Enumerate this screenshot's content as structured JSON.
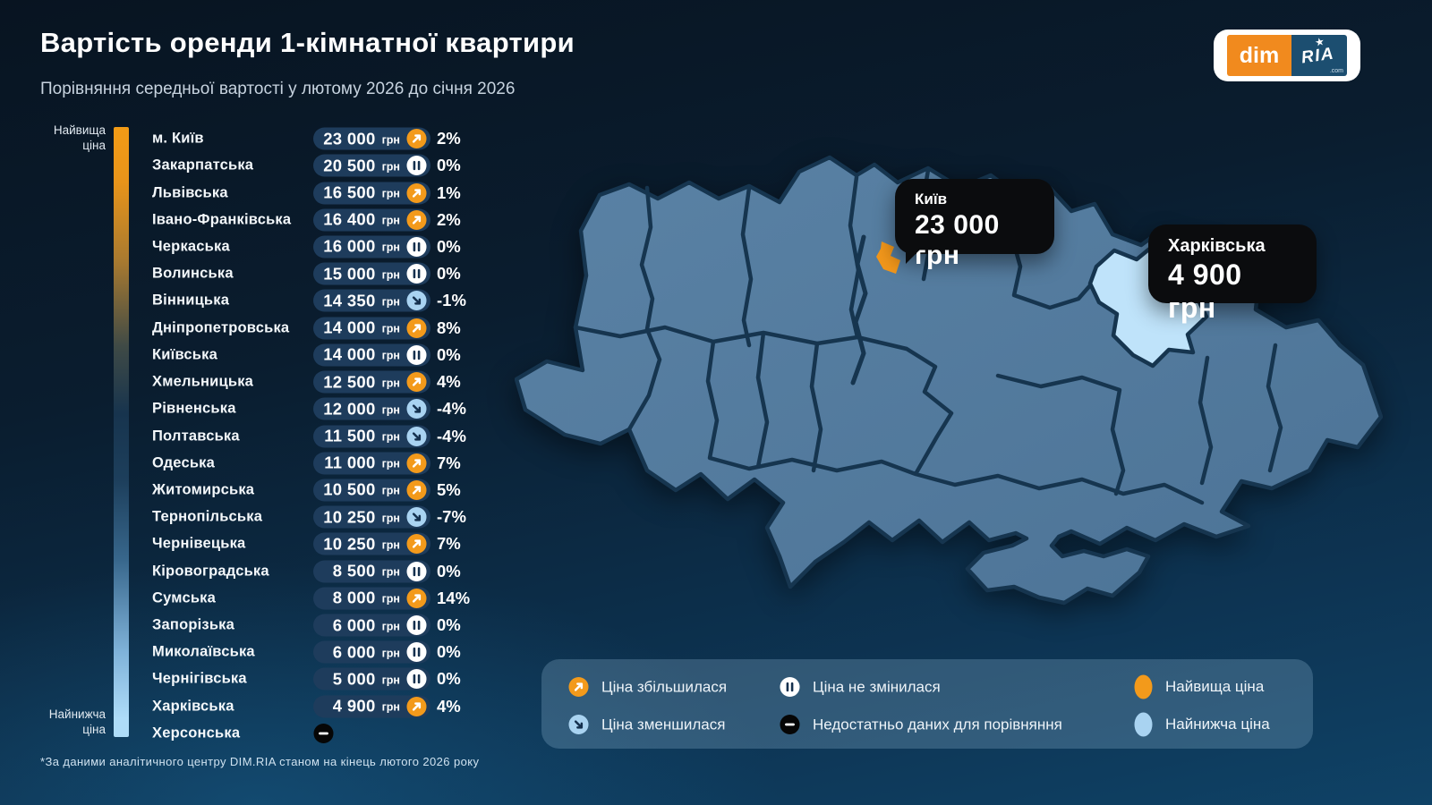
{
  "title": "Вартість оренди 1-кімнатної квартири",
  "subtitle": "Порівняння середньої вартості у лютому 2026 до січня 2026",
  "logo": {
    "dim": "dim",
    "ria": "RIA",
    "com": ".com",
    "star": "★"
  },
  "scale": {
    "top_label": "Найвища ціна",
    "bottom_label": "Найнижча ціна"
  },
  "units_label": "грн",
  "regions": [
    {
      "name": "м. Київ",
      "price": "23 000",
      "trend": "up",
      "change": "2%"
    },
    {
      "name": "Закарпатська",
      "price": "20 500",
      "trend": "same",
      "change": "0%"
    },
    {
      "name": "Львівська",
      "price": "16 500",
      "trend": "up",
      "change": "1%"
    },
    {
      "name": "Івано-Франківська",
      "price": "16 400",
      "trend": "up",
      "change": "2%"
    },
    {
      "name": "Черкаська",
      "price": "16 000",
      "trend": "same",
      "change": "0%"
    },
    {
      "name": "Волинська",
      "price": "15 000",
      "trend": "same",
      "change": "0%"
    },
    {
      "name": "Вінницька",
      "price": "14 350",
      "trend": "down",
      "change": "-1%"
    },
    {
      "name": "Дніпропетровська",
      "price": "14 000",
      "trend": "up",
      "change": "8%"
    },
    {
      "name": "Київська",
      "price": "14 000",
      "trend": "same",
      "change": "0%"
    },
    {
      "name": "Хмельницька",
      "price": "12 500",
      "trend": "up",
      "change": "4%"
    },
    {
      "name": "Рівненська",
      "price": "12 000",
      "trend": "down",
      "change": "-4%"
    },
    {
      "name": "Полтавська",
      "price": "11 500",
      "trend": "down",
      "change": "-4%"
    },
    {
      "name": "Одеська",
      "price": "11 000",
      "trend": "up",
      "change": "7%"
    },
    {
      "name": "Житомирська",
      "price": "10 500",
      "trend": "up",
      "change": "5%"
    },
    {
      "name": "Тернопільська",
      "price": "10 250",
      "trend": "down",
      "change": "-7%"
    },
    {
      "name": "Чернівецька",
      "price": "10 250",
      "trend": "up",
      "change": "7%"
    },
    {
      "name": "Кіровоградська",
      "price": "8 500",
      "trend": "same",
      "change": "0%"
    },
    {
      "name": "Сумська",
      "price": "8 000",
      "trend": "up",
      "change": "14%"
    },
    {
      "name": "Запорізька",
      "price": "6 000",
      "trend": "same",
      "change": "0%"
    },
    {
      "name": "Миколаївська",
      "price": "6 000",
      "trend": "same",
      "change": "0%"
    },
    {
      "name": "Чернігівська",
      "price": "5 000",
      "trend": "same",
      "change": "0%"
    },
    {
      "name": "Харківська",
      "price": "4 900",
      "trend": "up",
      "change": "4%"
    },
    {
      "name": "Херсонська",
      "price": "",
      "trend": "nodata",
      "change": ""
    }
  ],
  "map": {
    "callouts": [
      {
        "region": "Київ",
        "price": "23 000 грн"
      },
      {
        "region": "Харківська",
        "price": "4 900 грн"
      }
    ]
  },
  "legend": {
    "items": [
      {
        "icon": "up",
        "label": "Ціна збільшилася"
      },
      {
        "icon": "same",
        "label": "Ціна не змінилася"
      },
      {
        "icon": "highest",
        "label": "Найвища ціна"
      },
      {
        "icon": "down",
        "label": "Ціна зменшилася"
      },
      {
        "icon": "nodata",
        "label": "Недостатньо даних для порівняння"
      },
      {
        "icon": "lowest",
        "label": "Найнижча ціна"
      }
    ]
  },
  "footnote": "*За даними аналітичного центру DIM.RIA станом на кінець лютого 2026 року",
  "colors": {
    "accent_orange": "#F39A1B",
    "light_blue": "#A9D3F1",
    "map_region": "#54799C",
    "map_border": "#16354F",
    "map_highlight": "#BFE3FA",
    "callout_bg": "#0B0C0E",
    "pill_bg": "#1E3C5C"
  },
  "chart_data": {
    "type": "table",
    "title": "Вартість оренди 1-кімнатної квартири",
    "subtitle": "Порівняння середньої вартості у лютому 2026 до січня 2026",
    "columns": [
      "region",
      "price_uah",
      "change_pct"
    ],
    "rows": [
      [
        "м. Київ",
        23000,
        2
      ],
      [
        "Закарпатська",
        20500,
        0
      ],
      [
        "Львівська",
        16500,
        1
      ],
      [
        "Івано-Франківська",
        16400,
        2
      ],
      [
        "Черкаська",
        16000,
        0
      ],
      [
        "Волинська",
        15000,
        0
      ],
      [
        "Вінницька",
        14350,
        -1
      ],
      [
        "Дніпропетровська",
        14000,
        8
      ],
      [
        "Київська",
        14000,
        0
      ],
      [
        "Хмельницька",
        12500,
        4
      ],
      [
        "Рівненська",
        12000,
        -4
      ],
      [
        "Полтавська",
        11500,
        -4
      ],
      [
        "Одеська",
        11000,
        7
      ],
      [
        "Житомирська",
        10500,
        5
      ],
      [
        "Тернопільська",
        10250,
        -7
      ],
      [
        "Чернівецька",
        10250,
        7
      ],
      [
        "Кіровоградська",
        8500,
        0
      ],
      [
        "Сумська",
        8000,
        14
      ],
      [
        "Запорізька",
        6000,
        0
      ],
      [
        "Миколаївська",
        6000,
        0
      ],
      [
        "Чернігівська",
        5000,
        0
      ],
      [
        "Харківська",
        4900,
        4
      ],
      [
        "Херсонська",
        null,
        null
      ]
    ],
    "map_highlights": [
      {
        "region": "Київ",
        "price_uah": 23000,
        "marker": "orange"
      },
      {
        "region": "Харківська",
        "price_uah": 4900,
        "marker": "light-blue"
      }
    ]
  }
}
